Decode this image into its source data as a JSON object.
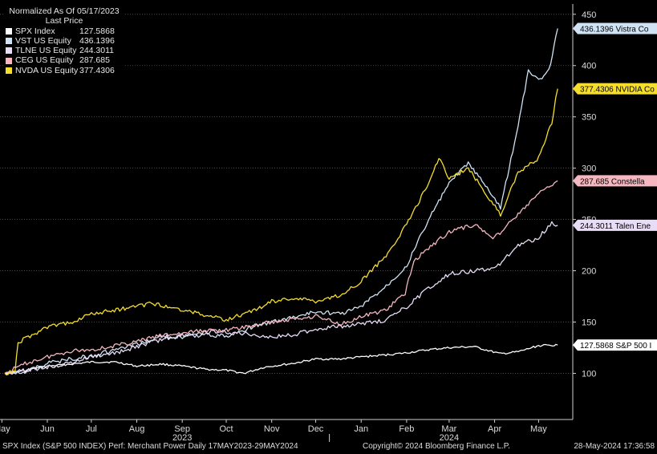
{
  "header": {
    "title": "Normalized As Of 05/17/2023",
    "subtitle": "Last Price"
  },
  "footer": {
    "left": "SPX Index (S&P 500 INDEX) Perf: Merchant Power  Daily 17MAY2023-29MAY2024",
    "center": "Copyright© 2024 Bloomberg Finance L.P.",
    "right": "28-May-2024 17:36:58"
  },
  "chart_data": {
    "type": "line",
    "title": "Normalized As Of 05/17/2023",
    "ylim": [
      55,
      460
    ],
    "yticks": [
      100,
      150,
      200,
      250,
      300,
      350,
      400,
      450
    ],
    "x_range": [
      "2023-05-17",
      "2024-05-29"
    ],
    "month_labels": [
      "May",
      "Jun",
      "Jul",
      "Aug",
      "Sep",
      "Oct",
      "Nov",
      "Dec",
      "Jan",
      "Feb",
      "Mar",
      "Apr",
      "May"
    ],
    "month_dates": [
      "2023-05-15",
      "2023-06-15",
      "2023-07-15",
      "2023-08-15",
      "2023-09-15",
      "2023-10-15",
      "2023-11-15",
      "2023-12-15",
      "2024-01-15",
      "2024-02-15",
      "2024-03-15",
      "2024-04-15",
      "2024-05-15"
    ],
    "year_labels": [
      {
        "label": "2023",
        "date": "2023-09-15"
      },
      {
        "label": "2024",
        "date": "2024-03-15"
      }
    ],
    "series": [
      {
        "name": "SPX Index",
        "last": "127.5868",
        "tag": "127.5868 S&P 500 I",
        "color": "#ffffff",
        "points": [
          [
            "2023-05-17",
            100
          ],
          [
            "2023-06-01",
            103
          ],
          [
            "2023-06-15",
            107
          ],
          [
            "2023-07-01",
            109
          ],
          [
            "2023-07-15",
            111
          ],
          [
            "2023-08-01",
            111
          ],
          [
            "2023-08-15",
            107
          ],
          [
            "2023-09-01",
            109
          ],
          [
            "2023-09-15",
            107
          ],
          [
            "2023-10-01",
            104
          ],
          [
            "2023-10-15",
            103
          ],
          [
            "2023-10-27",
            100
          ],
          [
            "2023-11-10",
            106
          ],
          [
            "2023-12-01",
            110
          ],
          [
            "2023-12-15",
            114
          ],
          [
            "2024-01-01",
            114
          ],
          [
            "2024-01-15",
            116
          ],
          [
            "2024-02-01",
            118
          ],
          [
            "2024-02-15",
            120
          ],
          [
            "2024-03-01",
            123
          ],
          [
            "2024-03-15",
            125
          ],
          [
            "2024-04-01",
            126
          ],
          [
            "2024-04-19",
            119
          ],
          [
            "2024-05-01",
            121
          ],
          [
            "2024-05-15",
            127
          ],
          [
            "2024-05-28",
            127.5868
          ]
        ]
      },
      {
        "name": "VST US Equity",
        "last": "436.1396",
        "tag": "436.1396 Vistra Co",
        "color": "#cfe3f5",
        "points": [
          [
            "2023-05-17",
            100
          ],
          [
            "2023-06-01",
            102
          ],
          [
            "2023-06-15",
            110
          ],
          [
            "2023-07-01",
            114
          ],
          [
            "2023-07-15",
            117
          ],
          [
            "2023-08-01",
            123
          ],
          [
            "2023-08-15",
            128
          ],
          [
            "2023-09-01",
            136
          ],
          [
            "2023-09-15",
            135
          ],
          [
            "2023-10-01",
            138
          ],
          [
            "2023-10-15",
            136
          ],
          [
            "2023-11-01",
            145
          ],
          [
            "2023-11-15",
            150
          ],
          [
            "2023-12-01",
            155
          ],
          [
            "2023-12-15",
            160
          ],
          [
            "2024-01-01",
            158
          ],
          [
            "2024-01-15",
            165
          ],
          [
            "2024-02-01",
            185
          ],
          [
            "2024-02-15",
            205
          ],
          [
            "2024-03-01",
            250
          ],
          [
            "2024-03-15",
            285
          ],
          [
            "2024-03-28",
            305
          ],
          [
            "2024-04-10",
            280
          ],
          [
            "2024-04-19",
            262
          ],
          [
            "2024-05-01",
            340
          ],
          [
            "2024-05-08",
            395
          ],
          [
            "2024-05-15",
            385
          ],
          [
            "2024-05-22",
            395
          ],
          [
            "2024-05-28",
            436.1396
          ]
        ]
      },
      {
        "name": "TLNE US Equity",
        "last": "244.3011",
        "tag": "244.3011 Talen Ene",
        "color": "#e9dcf7",
        "points": [
          [
            "2023-05-17",
            100
          ],
          [
            "2023-06-01",
            103
          ],
          [
            "2023-06-15",
            106
          ],
          [
            "2023-07-01",
            110
          ],
          [
            "2023-07-15",
            116
          ],
          [
            "2023-08-01",
            120
          ],
          [
            "2023-08-15",
            126
          ],
          [
            "2023-09-01",
            133
          ],
          [
            "2023-09-15",
            137
          ],
          [
            "2023-10-01",
            140
          ],
          [
            "2023-10-15",
            140
          ],
          [
            "2023-11-01",
            138
          ],
          [
            "2023-11-15",
            135
          ],
          [
            "2023-12-01",
            138
          ],
          [
            "2023-12-15",
            143
          ],
          [
            "2024-01-01",
            146
          ],
          [
            "2024-01-15",
            148
          ],
          [
            "2024-02-01",
            152
          ],
          [
            "2024-02-15",
            165
          ],
          [
            "2024-03-01",
            183
          ],
          [
            "2024-03-15",
            197
          ],
          [
            "2024-04-01",
            200
          ],
          [
            "2024-04-15",
            202
          ],
          [
            "2024-05-01",
            225
          ],
          [
            "2024-05-15",
            232
          ],
          [
            "2024-05-24",
            247
          ],
          [
            "2024-05-28",
            244.3011
          ]
        ]
      },
      {
        "name": "CEG US Equity",
        "last": "287.685",
        "tag": "287.685  Constella",
        "color": "#f7b7c0",
        "points": [
          [
            "2023-05-17",
            100
          ],
          [
            "2023-06-01",
            110
          ],
          [
            "2023-06-15",
            116
          ],
          [
            "2023-07-01",
            122
          ],
          [
            "2023-07-15",
            123
          ],
          [
            "2023-08-01",
            127
          ],
          [
            "2023-08-15",
            131
          ],
          [
            "2023-09-01",
            137
          ],
          [
            "2023-09-15",
            139
          ],
          [
            "2023-10-01",
            142
          ],
          [
            "2023-10-15",
            142
          ],
          [
            "2023-11-01",
            146
          ],
          [
            "2023-11-15",
            150
          ],
          [
            "2023-12-01",
            153
          ],
          [
            "2023-12-15",
            156
          ],
          [
            "2024-01-01",
            148
          ],
          [
            "2024-01-15",
            155
          ],
          [
            "2024-02-01",
            162
          ],
          [
            "2024-02-14",
            178
          ],
          [
            "2024-02-20",
            210
          ],
          [
            "2024-03-01",
            222
          ],
          [
            "2024-03-15",
            238
          ],
          [
            "2024-04-01",
            245
          ],
          [
            "2024-04-15",
            232
          ],
          [
            "2024-05-01",
            255
          ],
          [
            "2024-05-15",
            275
          ],
          [
            "2024-05-28",
            287.685
          ]
        ]
      },
      {
        "name": "NVDA US Equity",
        "last": "377.4306",
        "tag": "377.4306 NVIDIA Co",
        "color": "#f6de2f",
        "points": [
          [
            "2023-05-17",
            100
          ],
          [
            "2023-05-24",
            102
          ],
          [
            "2023-05-26",
            130
          ],
          [
            "2023-06-15",
            145
          ],
          [
            "2023-07-01",
            150
          ],
          [
            "2023-07-15",
            158
          ],
          [
            "2023-08-01",
            162
          ],
          [
            "2023-08-15",
            165
          ],
          [
            "2023-08-25",
            168
          ],
          [
            "2023-09-15",
            162
          ],
          [
            "2023-10-01",
            157
          ],
          [
            "2023-10-15",
            152
          ],
          [
            "2023-11-01",
            160
          ],
          [
            "2023-11-15",
            170
          ],
          [
            "2023-12-01",
            173
          ],
          [
            "2023-12-15",
            170
          ],
          [
            "2024-01-01",
            176
          ],
          [
            "2024-01-15",
            190
          ],
          [
            "2024-02-01",
            215
          ],
          [
            "2024-02-15",
            245
          ],
          [
            "2024-03-01",
            285
          ],
          [
            "2024-03-08",
            310
          ],
          [
            "2024-03-15",
            290
          ],
          [
            "2024-03-28",
            300
          ],
          [
            "2024-04-19",
            255
          ],
          [
            "2024-05-01",
            295
          ],
          [
            "2024-05-15",
            310
          ],
          [
            "2024-05-24",
            345
          ],
          [
            "2024-05-28",
            377.4306
          ]
        ]
      }
    ]
  }
}
